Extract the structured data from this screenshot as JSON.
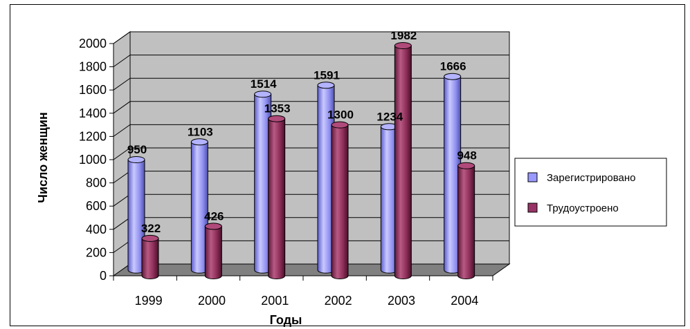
{
  "chart_data": {
    "type": "bar",
    "categories": [
      "1999",
      "2000",
      "2001",
      "2002",
      "2003",
      "2004"
    ],
    "series": [
      {
        "name": "Зарегистрировано",
        "values": [
          950,
          1103,
          1514,
          1591,
          1234,
          1666
        ]
      },
      {
        "name": "Трудоустроено",
        "values": [
          322,
          426,
          1353,
          1300,
          1982,
          948
        ]
      }
    ],
    "title": "",
    "xlabel": "Годы",
    "ylabel": "Число женщин",
    "ylim": [
      0,
      2000
    ],
    "yticks": [
      "0",
      "200",
      "400",
      "600",
      "800",
      "1000",
      "1200",
      "1400",
      "1600",
      "1800",
      "2000"
    ],
    "data_labels": {
      "series0": [
        "950",
        "1103",
        "1514",
        "1591",
        "1234",
        "1666"
      ],
      "series1": [
        "322",
        "426",
        "1353",
        "1300",
        "1982",
        "948"
      ]
    },
    "grid": true,
    "legend_position": "right",
    "colors": {
      "series0_fill": "#9999ff",
      "series1_fill": "#993366",
      "wall": "#c0c0c0",
      "floor": "#808080"
    }
  }
}
